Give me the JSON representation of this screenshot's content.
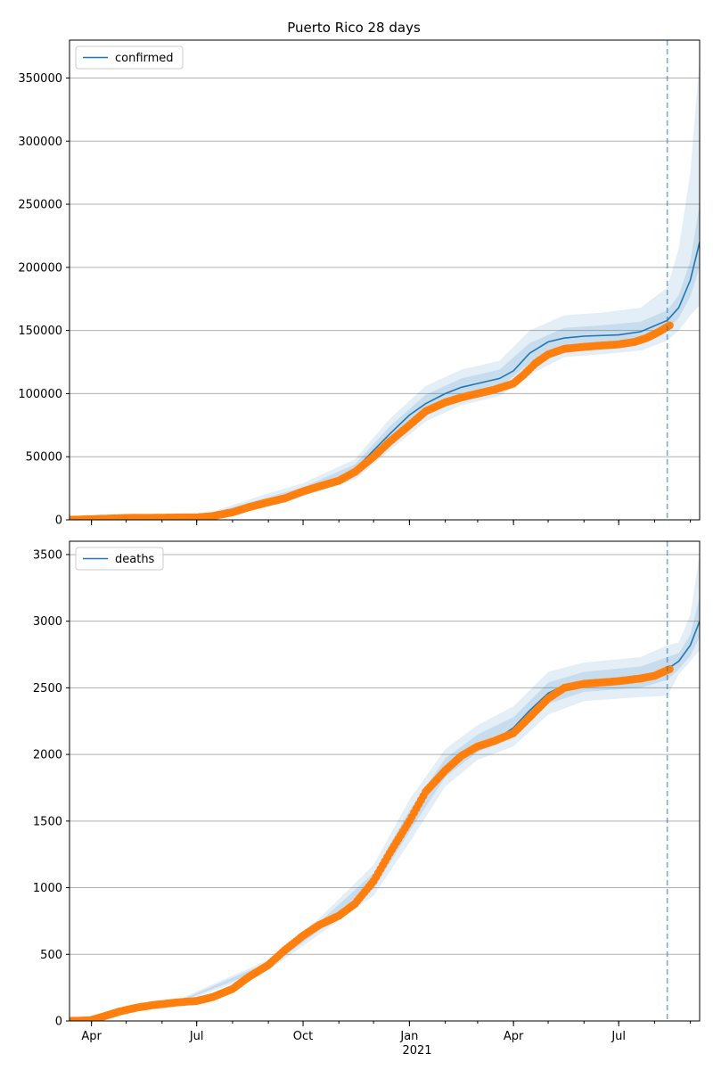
{
  "chart_data": {
    "type": "line",
    "title": "Puerto Rico 28 days",
    "x_tick_labels": [
      "Apr",
      "Jul",
      "Oct",
      "Jan",
      "Apr",
      "Jul"
    ],
    "x_tick_dates": [
      "2020-04-01",
      "2020-07-01",
      "2020-10-01",
      "2021-01-01",
      "2021-04-01",
      "2021-07-01"
    ],
    "x_year_label": "2021",
    "xlim": [
      "2020-03-13",
      "2021-09-09"
    ],
    "forecast_start": "2021-08-12",
    "grid": "horizontal",
    "colors": {
      "model_line": "#1f77b4",
      "band": "#1f77b4",
      "observed": "#ff7f0e",
      "vline": "#1f77b4",
      "grid": "#b0b0b0"
    },
    "panels": [
      {
        "legend": "confirmed",
        "legend_position": "top-left",
        "ylim": [
          0,
          380000
        ],
        "yticks": [
          0,
          50000,
          100000,
          150000,
          200000,
          250000,
          300000,
          350000
        ],
        "model": [
          [
            "2020-03-13",
            0
          ],
          [
            "2020-06-01",
            500
          ],
          [
            "2020-07-01",
            1500
          ],
          [
            "2020-08-01",
            7000
          ],
          [
            "2020-08-25",
            13500
          ],
          [
            "2020-09-15",
            18000
          ],
          [
            "2020-10-01",
            23000
          ],
          [
            "2020-10-25",
            30000
          ],
          [
            "2020-11-15",
            40000
          ],
          [
            "2020-12-01",
            55000
          ],
          [
            "2020-12-15",
            68000
          ],
          [
            "2021-01-01",
            83000
          ],
          [
            "2021-01-15",
            92000
          ],
          [
            "2021-02-01",
            100000
          ],
          [
            "2021-02-15",
            105000
          ],
          [
            "2021-03-01",
            108000
          ],
          [
            "2021-03-20",
            112000
          ],
          [
            "2021-04-01",
            118000
          ],
          [
            "2021-04-15",
            132000
          ],
          [
            "2021-05-01",
            141000
          ],
          [
            "2021-05-15",
            144000
          ],
          [
            "2021-06-01",
            145500
          ],
          [
            "2021-07-01",
            146500
          ],
          [
            "2021-07-20",
            149000
          ],
          [
            "2021-08-12",
            158000
          ],
          [
            "2021-08-22",
            168000
          ],
          [
            "2021-09-01",
            190000
          ],
          [
            "2021-09-09",
            220000
          ]
        ],
        "band_inner": [
          [
            "2020-03-13",
            0,
            0
          ],
          [
            "2020-07-01",
            1000,
            2000
          ],
          [
            "2020-09-01",
            13000,
            18000
          ],
          [
            "2020-10-01",
            21000,
            26000
          ],
          [
            "2020-11-15",
            36000,
            44000
          ],
          [
            "2020-12-15",
            62000,
            74000
          ],
          [
            "2021-01-15",
            85000,
            99000
          ],
          [
            "2021-02-15",
            98000,
            112000
          ],
          [
            "2021-03-20",
            105000,
            119000
          ],
          [
            "2021-04-15",
            124000,
            140000
          ],
          [
            "2021-05-15",
            136000,
            152000
          ],
          [
            "2021-06-15",
            138000,
            154000
          ],
          [
            "2021-07-20",
            141000,
            157000
          ],
          [
            "2021-08-12",
            150000,
            166000
          ],
          [
            "2021-08-22",
            160000,
            178000
          ],
          [
            "2021-09-01",
            177000,
            205000
          ],
          [
            "2021-09-09",
            200000,
            250000
          ]
        ],
        "band_outer": [
          [
            "2020-03-13",
            0,
            0
          ],
          [
            "2020-07-01",
            500,
            2500
          ],
          [
            "2020-09-01",
            11000,
            21000
          ],
          [
            "2020-10-01",
            19000,
            29000
          ],
          [
            "2020-11-15",
            32000,
            48000
          ],
          [
            "2020-12-15",
            55000,
            80000
          ],
          [
            "2021-01-15",
            78000,
            106000
          ],
          [
            "2021-02-15",
            91000,
            119000
          ],
          [
            "2021-03-20",
            98000,
            126000
          ],
          [
            "2021-04-15",
            115000,
            150000
          ],
          [
            "2021-05-15",
            129000,
            162000
          ],
          [
            "2021-06-15",
            131000,
            164000
          ],
          [
            "2021-07-20",
            134000,
            168000
          ],
          [
            "2021-08-12",
            142000,
            184000
          ],
          [
            "2021-08-22",
            150000,
            215000
          ],
          [
            "2021-09-01",
            162000,
            275000
          ],
          [
            "2021-09-09",
            170000,
            365000
          ]
        ],
        "observed": [
          [
            "2020-03-13",
            0
          ],
          [
            "2020-04-15",
            1000
          ],
          [
            "2020-05-01",
            1500
          ],
          [
            "2020-06-01",
            1700
          ],
          [
            "2020-07-01",
            2000
          ],
          [
            "2020-07-15",
            3000
          ],
          [
            "2020-08-01",
            6000
          ],
          [
            "2020-08-15",
            10000
          ],
          [
            "2020-09-01",
            14000
          ],
          [
            "2020-09-15",
            17000
          ],
          [
            "2020-10-01",
            22500
          ],
          [
            "2020-10-15",
            26500
          ],
          [
            "2020-11-01",
            31000
          ],
          [
            "2020-11-15",
            38000
          ],
          [
            "2020-12-01",
            50000
          ],
          [
            "2020-12-15",
            62000
          ],
          [
            "2021-01-01",
            75000
          ],
          [
            "2021-01-15",
            86000
          ],
          [
            "2021-02-01",
            93000
          ],
          [
            "2021-02-15",
            97000
          ],
          [
            "2021-03-01",
            100000
          ],
          [
            "2021-03-15",
            103000
          ],
          [
            "2021-04-01",
            108000
          ],
          [
            "2021-04-10",
            115000
          ],
          [
            "2021-04-20",
            124000
          ],
          [
            "2021-05-01",
            131000
          ],
          [
            "2021-05-15",
            135500
          ],
          [
            "2021-06-01",
            137000
          ],
          [
            "2021-06-15",
            138000
          ],
          [
            "2021-07-01",
            139000
          ],
          [
            "2021-07-15",
            141000
          ],
          [
            "2021-07-25",
            144000
          ],
          [
            "2021-08-05",
            149000
          ],
          [
            "2021-08-14",
            154000
          ]
        ]
      },
      {
        "legend": "deaths",
        "legend_position": "top-left",
        "ylim": [
          0,
          3600
        ],
        "yticks": [
          0,
          500,
          1000,
          1500,
          2000,
          2500,
          3000,
          3500
        ],
        "model": [
          [
            "2020-03-13",
            0
          ],
          [
            "2020-04-15",
            40
          ],
          [
            "2020-05-15",
            110
          ],
          [
            "2020-06-15",
            145
          ],
          [
            "2020-07-15",
            180
          ],
          [
            "2020-08-01",
            240
          ],
          [
            "2020-08-15",
            330
          ],
          [
            "2020-09-01",
            420
          ],
          [
            "2020-09-15",
            520
          ],
          [
            "2020-10-01",
            630
          ],
          [
            "2020-10-15",
            710
          ],
          [
            "2020-11-01",
            790
          ],
          [
            "2020-11-15",
            880
          ],
          [
            "2020-12-01",
            1050
          ],
          [
            "2020-12-15",
            1250
          ],
          [
            "2021-01-01",
            1500
          ],
          [
            "2021-01-15",
            1720
          ],
          [
            "2021-02-01",
            1900
          ],
          [
            "2021-02-15",
            2010
          ],
          [
            "2021-03-01",
            2080
          ],
          [
            "2021-03-20",
            2130
          ],
          [
            "2021-04-01",
            2200
          ],
          [
            "2021-04-15",
            2330
          ],
          [
            "2021-05-01",
            2460
          ],
          [
            "2021-05-15",
            2520
          ],
          [
            "2021-06-01",
            2545
          ],
          [
            "2021-07-01",
            2560
          ],
          [
            "2021-07-20",
            2580
          ],
          [
            "2021-08-12",
            2640
          ],
          [
            "2021-08-22",
            2700
          ],
          [
            "2021-09-01",
            2820
          ],
          [
            "2021-09-09",
            3000
          ]
        ],
        "band_inner": [
          [
            "2020-03-13",
            0,
            0
          ],
          [
            "2020-06-15",
            140,
            150
          ],
          [
            "2020-09-01",
            400,
            440
          ],
          [
            "2020-10-15",
            680,
            740
          ],
          [
            "2020-12-01",
            990,
            1110
          ],
          [
            "2021-01-01",
            1420,
            1580
          ],
          [
            "2021-02-01",
            1830,
            1970
          ],
          [
            "2021-03-01",
            2020,
            2150
          ],
          [
            "2021-04-01",
            2130,
            2280
          ],
          [
            "2021-05-01",
            2380,
            2540
          ],
          [
            "2021-06-01",
            2470,
            2620
          ],
          [
            "2021-07-20",
            2500,
            2660
          ],
          [
            "2021-08-12",
            2560,
            2730
          ],
          [
            "2021-08-22",
            2640,
            2760
          ],
          [
            "2021-09-01",
            2740,
            2900
          ],
          [
            "2021-09-09",
            2880,
            3180
          ]
        ],
        "band_outer": [
          [
            "2020-03-13",
            0,
            0
          ],
          [
            "2020-06-15",
            130,
            160
          ],
          [
            "2020-09-01",
            380,
            460
          ],
          [
            "2020-10-15",
            650,
            770
          ],
          [
            "2020-12-01",
            940,
            1170
          ],
          [
            "2021-01-01",
            1340,
            1660
          ],
          [
            "2021-02-01",
            1760,
            2040
          ],
          [
            "2021-03-01",
            1960,
            2220
          ],
          [
            "2021-04-01",
            2060,
            2360
          ],
          [
            "2021-05-01",
            2300,
            2620
          ],
          [
            "2021-06-01",
            2400,
            2690
          ],
          [
            "2021-07-20",
            2430,
            2730
          ],
          [
            "2021-08-12",
            2440,
            2820
          ],
          [
            "2021-08-22",
            2600,
            2840
          ],
          [
            "2021-09-01",
            2700,
            3050
          ],
          [
            "2021-09-09",
            2780,
            3500
          ]
        ],
        "observed": [
          [
            "2020-03-13",
            0
          ],
          [
            "2020-03-31",
            5
          ],
          [
            "2020-04-10",
            30
          ],
          [
            "2020-04-25",
            70
          ],
          [
            "2020-05-10",
            100
          ],
          [
            "2020-05-25",
            120
          ],
          [
            "2020-06-15",
            140
          ],
          [
            "2020-07-01",
            150
          ],
          [
            "2020-07-15",
            180
          ],
          [
            "2020-08-01",
            240
          ],
          [
            "2020-08-15",
            330
          ],
          [
            "2020-09-01",
            420
          ],
          [
            "2020-09-15",
            530
          ],
          [
            "2020-10-01",
            640
          ],
          [
            "2020-10-15",
            720
          ],
          [
            "2020-11-01",
            790
          ],
          [
            "2020-11-15",
            880
          ],
          [
            "2020-12-01",
            1050
          ],
          [
            "2020-12-15",
            1260
          ],
          [
            "2021-01-01",
            1500
          ],
          [
            "2021-01-15",
            1720
          ],
          [
            "2021-02-01",
            1880
          ],
          [
            "2021-02-15",
            1990
          ],
          [
            "2021-03-01",
            2060
          ],
          [
            "2021-03-15",
            2100
          ],
          [
            "2021-04-01",
            2160
          ],
          [
            "2021-04-15",
            2280
          ],
          [
            "2021-05-01",
            2420
          ],
          [
            "2021-05-15",
            2500
          ],
          [
            "2021-06-01",
            2530
          ],
          [
            "2021-07-01",
            2550
          ],
          [
            "2021-07-20",
            2570
          ],
          [
            "2021-08-01",
            2590
          ],
          [
            "2021-08-14",
            2640
          ]
        ]
      }
    ]
  }
}
